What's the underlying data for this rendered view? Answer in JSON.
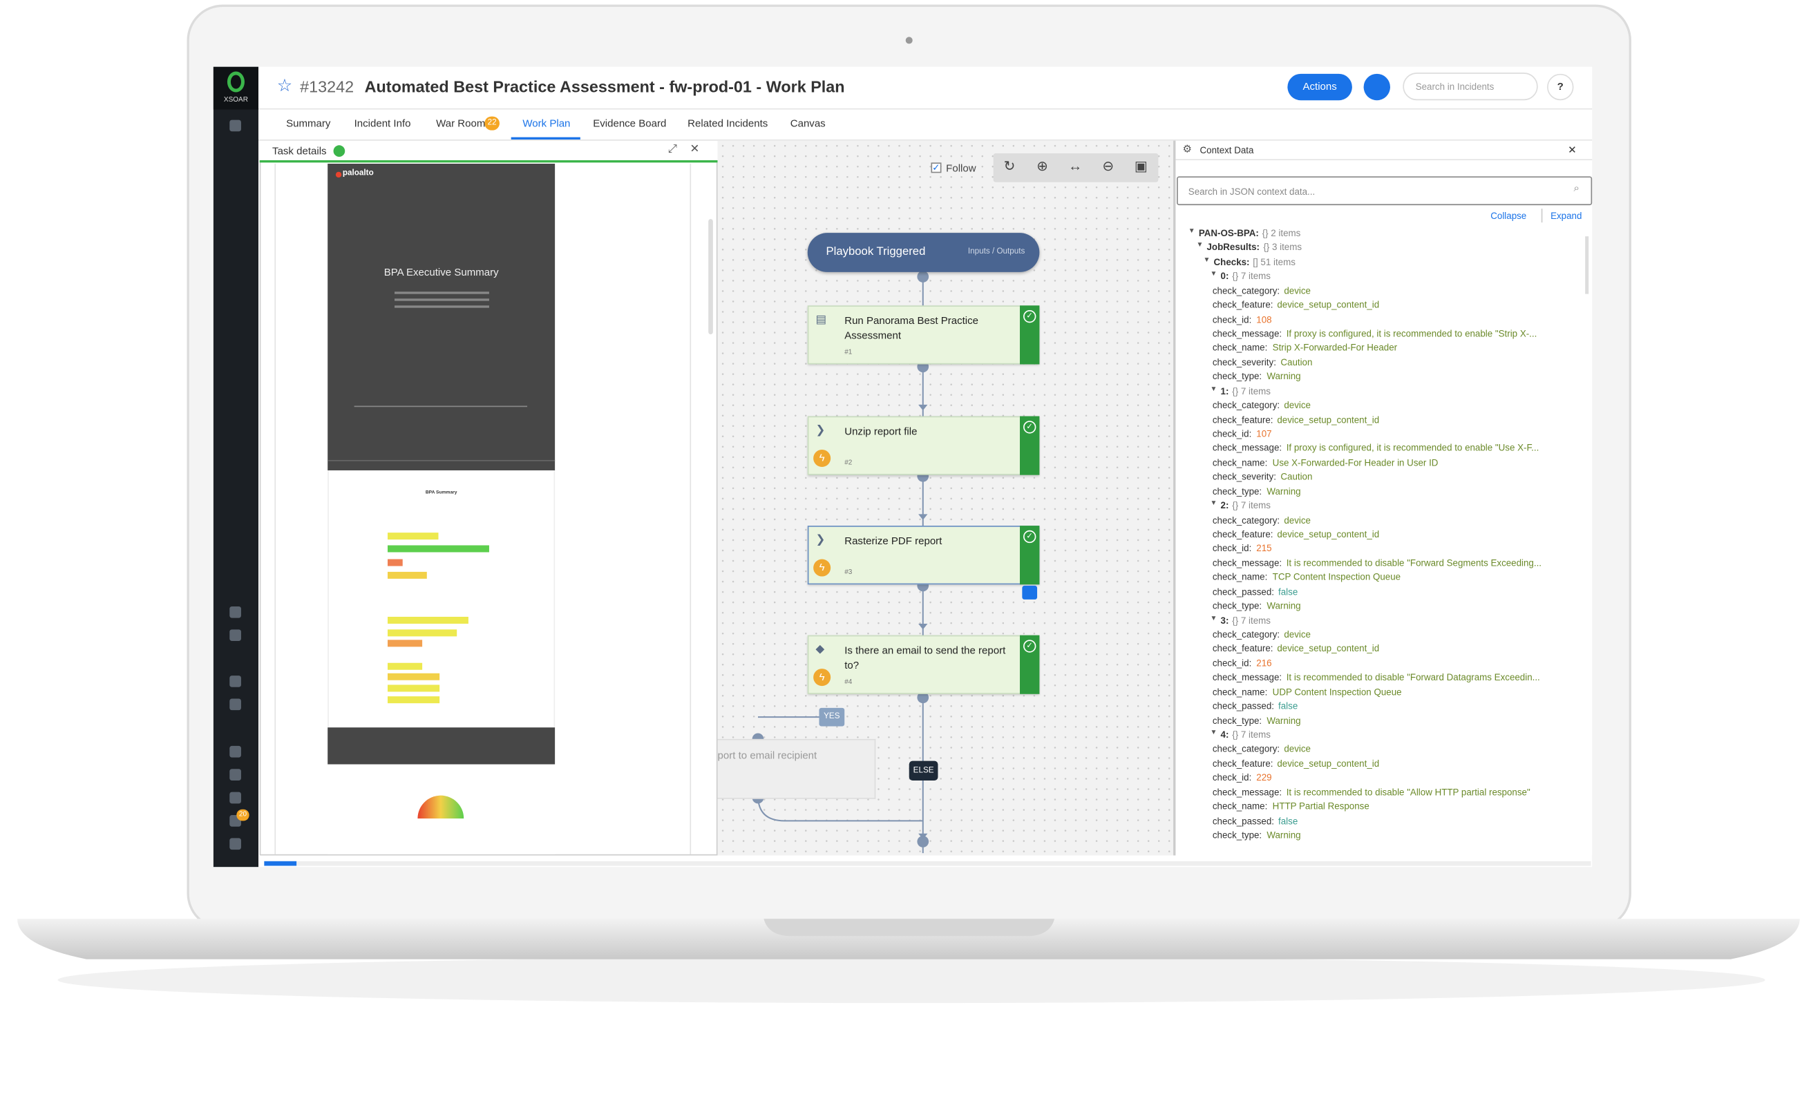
{
  "header": {
    "app_name": "XSOAR",
    "incident_id": "#13242",
    "title": "Automated Best Practice Assessment - fw-prod-01 - Work Plan",
    "actions_button": "Actions",
    "search_placeholder": "Search in Incidents",
    "help_button": "?"
  },
  "sidebar": {
    "notification_badge": "20"
  },
  "tabs": [
    {
      "label": "Summary"
    },
    {
      "label": "Incident Info"
    },
    {
      "label": "War Room",
      "badge": "22"
    },
    {
      "label": "Work Plan",
      "active": true
    },
    {
      "label": "Evidence Board"
    },
    {
      "label": "Related Incidents"
    },
    {
      "label": "Canvas"
    }
  ],
  "task_details": {
    "title": "Task details",
    "report": {
      "brand": "paloalto",
      "title": "BPA Executive Summary",
      "section_title": "BPA Summary"
    }
  },
  "work_plan": {
    "follow": "Follow",
    "trigger": {
      "label": "Playbook Triggered",
      "link": "Inputs / Outputs"
    },
    "tasks": [
      {
        "label": "Run Panorama Best Practice Assessment",
        "number": "#1",
        "kind": "playbook"
      },
      {
        "label": "Unzip report file",
        "number": "#2",
        "kind": "automation"
      },
      {
        "label": "Rasterize PDF report",
        "number": "#3",
        "kind": "automation"
      },
      {
        "label": "Is there an email to send the report to?",
        "number": "#4",
        "kind": "condition"
      }
    ],
    "branches": {
      "yes": "YES",
      "else": "ELSE"
    },
    "partial_task": "port to email recipient"
  },
  "context_data": {
    "title": "Context Data",
    "search_placeholder": "Search in JSON context data...",
    "collapse": "Collapse",
    "expand": "Expand",
    "root": {
      "key": "PAN-OS-BPA:",
      "meta": "{} 2 items",
      "child": {
        "key": "JobResults:",
        "meta": "{} 3 items",
        "child": {
          "key": "Checks:",
          "meta": "[] 51 items",
          "items": [
            {
              "key": "0:",
              "meta": "{} 7 items",
              "fields": [
                [
                  "check_category:",
                  "device"
                ],
                [
                  "check_feature:",
                  "device_setup_content_id"
                ],
                [
                  "check_id:",
                  "108"
                ],
                [
                  "check_message:",
                  "If proxy is configured, it is recommended to enable \"Strip X-..."
                ],
                [
                  "check_name:",
                  "Strip X-Forwarded-For Header"
                ],
                [
                  "check_severity:",
                  "Caution"
                ],
                [
                  "check_type:",
                  "Warning"
                ]
              ]
            },
            {
              "key": "1:",
              "meta": "{} 7 items",
              "fields": [
                [
                  "check_category:",
                  "device"
                ],
                [
                  "check_feature:",
                  "device_setup_content_id"
                ],
                [
                  "check_id:",
                  "107"
                ],
                [
                  "check_message:",
                  "If proxy is configured, it is recommended to enable \"Use X-F..."
                ],
                [
                  "check_name:",
                  "Use X-Forwarded-For Header in User ID"
                ],
                [
                  "check_severity:",
                  "Caution"
                ],
                [
                  "check_type:",
                  "Warning"
                ]
              ]
            },
            {
              "key": "2:",
              "meta": "{} 7 items",
              "fields": [
                [
                  "check_category:",
                  "device"
                ],
                [
                  "check_feature:",
                  "device_setup_content_id"
                ],
                [
                  "check_id:",
                  "215"
                ],
                [
                  "check_message:",
                  "It is recommended to disable \"Forward Segments Exceeding..."
                ],
                [
                  "check_name:",
                  "TCP Content Inspection Queue"
                ],
                [
                  "check_passed:",
                  "false"
                ],
                [
                  "check_type:",
                  "Warning"
                ]
              ]
            },
            {
              "key": "3:",
              "meta": "{} 7 items",
              "fields": [
                [
                  "check_category:",
                  "device"
                ],
                [
                  "check_feature:",
                  "device_setup_content_id"
                ],
                [
                  "check_id:",
                  "216"
                ],
                [
                  "check_message:",
                  "It is recommended to disable \"Forward Datagrams Exceedin..."
                ],
                [
                  "check_name:",
                  "UDP Content Inspection Queue"
                ],
                [
                  "check_passed:",
                  "false"
                ],
                [
                  "check_type:",
                  "Warning"
                ]
              ]
            },
            {
              "key": "4:",
              "meta": "{} 7 items",
              "fields": [
                [
                  "check_category:",
                  "device"
                ],
                [
                  "check_feature:",
                  "device_setup_content_id"
                ],
                [
                  "check_id:",
                  "229"
                ],
                [
                  "check_message:",
                  "It is recommended to disable \"Allow HTTP partial response\""
                ],
                [
                  "check_name:",
                  "HTTP Partial Response"
                ],
                [
                  "check_passed:",
                  "false"
                ],
                [
                  "check_type:",
                  "Warning"
                ]
              ]
            }
          ]
        }
      }
    }
  }
}
